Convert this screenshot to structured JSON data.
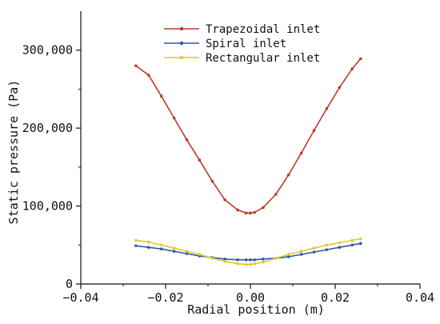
{
  "chart_data": {
    "type": "line",
    "xlabel": "Radial position (m)",
    "ylabel": "Static pressure (Pa)",
    "xlim": [
      -0.04,
      0.04
    ],
    "ylim": [
      0,
      350000
    ],
    "x_ticks": [
      -0.04,
      -0.02,
      0.0,
      0.02,
      0.04
    ],
    "x_tick_labels": [
      "−0.04",
      "−0.02",
      "0.00",
      "0.02",
      "0.04"
    ],
    "y_ticks": [
      0,
      100000,
      200000,
      300000
    ],
    "y_tick_labels": [
      "0",
      "100,000",
      "200,000",
      "300,000"
    ],
    "legend_position": "top-center",
    "grid": false,
    "x": [
      -0.027,
      -0.024,
      -0.021,
      -0.018,
      -0.015,
      -0.012,
      -0.009,
      -0.006,
      -0.003,
      -0.001,
      0.0,
      0.001,
      0.003,
      0.006,
      0.009,
      0.012,
      0.015,
      0.018,
      0.021,
      0.024,
      0.026
    ],
    "series": [
      {
        "name": "Trapezoidal inlet",
        "color": "#c0392b",
        "values": [
          280000,
          268000,
          241000,
          213000,
          185000,
          159000,
          132000,
          108000,
          95000,
          91000,
          91000,
          92000,
          98000,
          115000,
          140000,
          168000,
          197000,
          225000,
          252000,
          276000,
          289000
        ]
      },
      {
        "name": "Spiral inlet",
        "color": "#2e5aa8",
        "values": [
          49000,
          47000,
          45000,
          42000,
          39000,
          36000,
          34000,
          32000,
          31000,
          31000,
          31000,
          31000,
          32000,
          33000,
          35000,
          38000,
          41000,
          44000,
          47000,
          50000,
          52000
        ]
      },
      {
        "name": "Rectangular inlet",
        "color": "#e0c832",
        "values": [
          56000,
          54000,
          50000,
          46000,
          42000,
          38000,
          33000,
          29000,
          26000,
          25000,
          25000,
          26000,
          28000,
          33000,
          38000,
          42000,
          46000,
          50000,
          53000,
          56000,
          58000
        ]
      }
    ]
  }
}
